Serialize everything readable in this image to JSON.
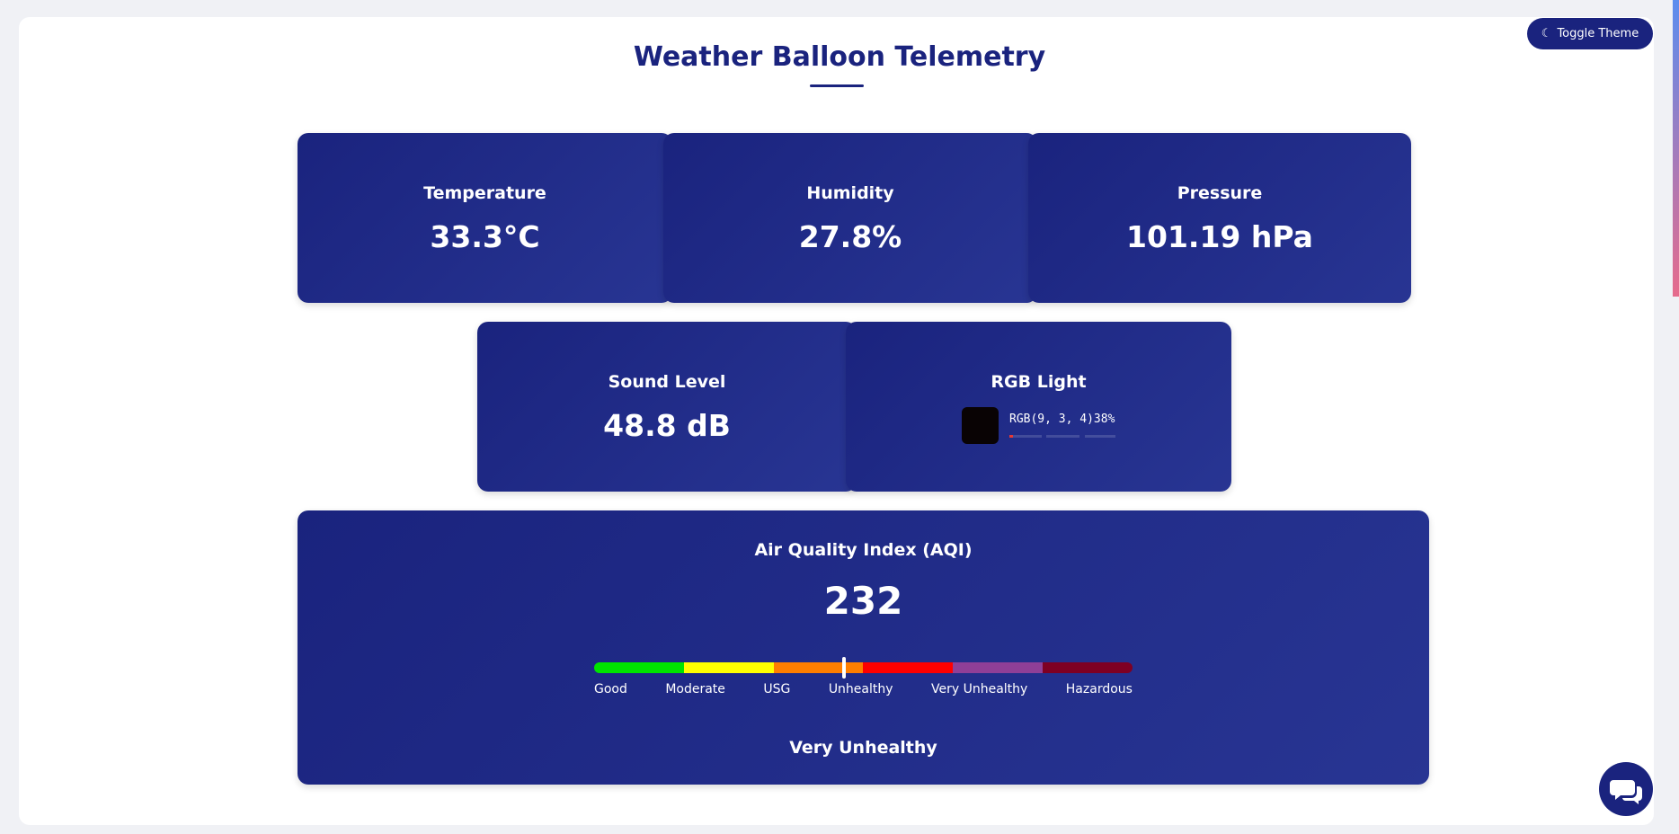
{
  "header": {
    "title": "Weather Balloon Telemetry",
    "toggle": "Toggle Theme"
  },
  "cards": [
    {
      "label": "Temperature",
      "value": "33.3°C"
    },
    {
      "label": "Humidity",
      "value": "27.8%"
    },
    {
      "label": "Pressure",
      "value": "101.19 hPa"
    },
    {
      "label": "Sound Level",
      "value": "48.8 dB"
    }
  ],
  "rgb": {
    "label": "RGB Light",
    "text": "RGB(9, 3, 4)",
    "brightness": "38%",
    "swatch_color": "#090304"
  },
  "aqi": {
    "label": "Air Quality Index (AQI)",
    "value": 232,
    "range": [
      0,
      500
    ],
    "scale": [
      {
        "name": "Good",
        "color": "#00e400"
      },
      {
        "name": "Moderate",
        "color": "#ffff00"
      },
      {
        "name": "USG",
        "color": "#ff7e00"
      },
      {
        "name": "Unhealthy",
        "color": "#ff0000"
      },
      {
        "name": "Very Unhealthy",
        "color": "#8f3f97"
      },
      {
        "name": "Hazardous",
        "color": "#7e0023"
      }
    ],
    "status": "Very Unhealthy"
  }
}
